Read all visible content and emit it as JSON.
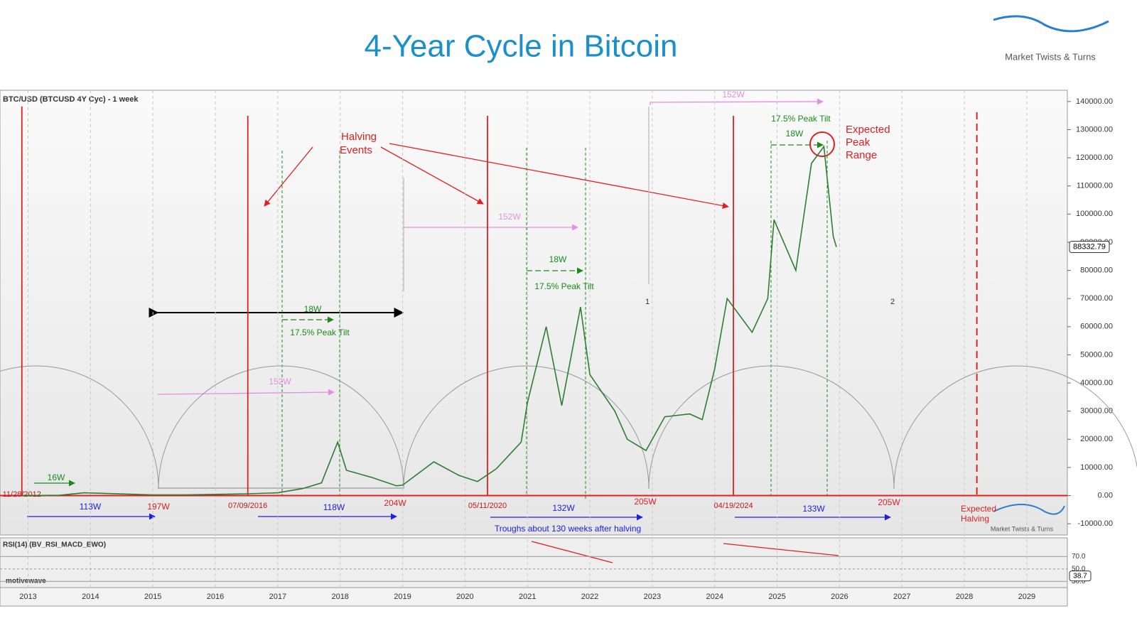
{
  "header": {
    "title": "4-Year Cycle in Bitcoin",
    "logo": "Market Twists & Turns"
  },
  "chart_data": {
    "type": "line",
    "title": "BTC/USD (BTCUSD 4Y Cyc) - 1 week",
    "color": "#2e7d32",
    "x": [
      2012.9,
      2013.5,
      2013.9,
      2014.5,
      2015.0,
      2015.5,
      2016.0,
      2016.5,
      2017.0,
      2017.4,
      2017.7,
      2017.96,
      2018.1,
      2018.5,
      2018.9,
      2019.0,
      2019.5,
      2019.9,
      2020.2,
      2020.5,
      2020.9,
      2021.0,
      2021.3,
      2021.55,
      2021.85,
      2022.0,
      2022.4,
      2022.6,
      2022.9,
      2023.2,
      2023.6,
      2023.8,
      2024.0,
      2024.2,
      2024.6,
      2024.85,
      2024.95,
      2025.3,
      2025.55,
      2025.75,
      2025.9,
      2025.95
    ],
    "values": [
      12,
      100,
      1000,
      600,
      250,
      250,
      430,
      650,
      1000,
      2500,
      4500,
      19000,
      9000,
      6500,
      3500,
      3700,
      12000,
      7200,
      5000,
      9500,
      19000,
      33000,
      60000,
      32000,
      67000,
      43000,
      30000,
      20000,
      16000,
      28000,
      29000,
      27000,
      45000,
      70000,
      58000,
      70000,
      98000,
      80000,
      118000,
      124000,
      92000,
      88332.79
    ],
    "last_price": 88332.79,
    "xlim": [
      2012.55,
      2029.65
    ],
    "xticks": [
      2013,
      2014,
      2015,
      2016,
      2017,
      2018,
      2019,
      2020,
      2021,
      2022,
      2023,
      2024,
      2025,
      2026,
      2027,
      2028,
      2029
    ],
    "ylim": [
      -14000,
      144000
    ],
    "yticks": [
      {
        "value": -10000,
        "label": "-10000.00"
      },
      {
        "value": 0,
        "label": "0.00"
      },
      {
        "value": 10000,
        "label": "10000.00"
      },
      {
        "value": 20000,
        "label": "20000.00"
      },
      {
        "value": 30000,
        "label": "30000.00"
      },
      {
        "value": 40000,
        "label": "40000.00"
      },
      {
        "value": 50000,
        "label": "50000.00"
      },
      {
        "value": 60000,
        "label": "60000.00"
      },
      {
        "value": 70000,
        "label": "70000.00"
      },
      {
        "value": 80000,
        "label": "80000.00"
      },
      {
        "value": 90000,
        "label": "90000.00"
      },
      {
        "value": 100000,
        "label": "100000.00"
      },
      {
        "value": 110000,
        "label": "110000.00"
      },
      {
        "value": 120000,
        "label": "120000.00"
      },
      {
        "value": 130000,
        "label": "130000.00"
      },
      {
        "value": 140000,
        "label": "140000.00"
      }
    ],
    "halvings": [
      {
        "label": "11/28/2012",
        "x": 2012.9
      },
      {
        "label": "07/09/2016",
        "x": 2016.52
      },
      {
        "label": "05/11/2020",
        "x": 2020.36
      },
      {
        "label": "04/19/2024",
        "x": 2024.3
      }
    ],
    "expected_halving_x": 2028.2,
    "annotations": [
      "Halving",
      "Events",
      "Expected",
      "Peak",
      "Range",
      "152W",
      "152W",
      "152W",
      "18W",
      "18W",
      "18W",
      "17.5% Peak Tilt",
      "17.5% Peak Tilt",
      "17.5% Peak Tilt",
      "16W",
      "113W",
      "197W",
      "118W",
      "204W",
      "132W",
      "205W",
      "133W",
      "205W",
      "Troughs about 130 weeks after halving",
      "Expected",
      "Halving",
      "1",
      "2"
    ],
    "rsi_title": "RSI(14) (BV_RSI_MACD_EWO)",
    "rsi_ticks": [
      {
        "value": 70,
        "label": "70.0"
      },
      {
        "value": 50,
        "label": "50.0"
      },
      {
        "value": 30,
        "label": "30.0"
      }
    ],
    "rsi_last": 38.7,
    "watermark": "motivewave"
  }
}
